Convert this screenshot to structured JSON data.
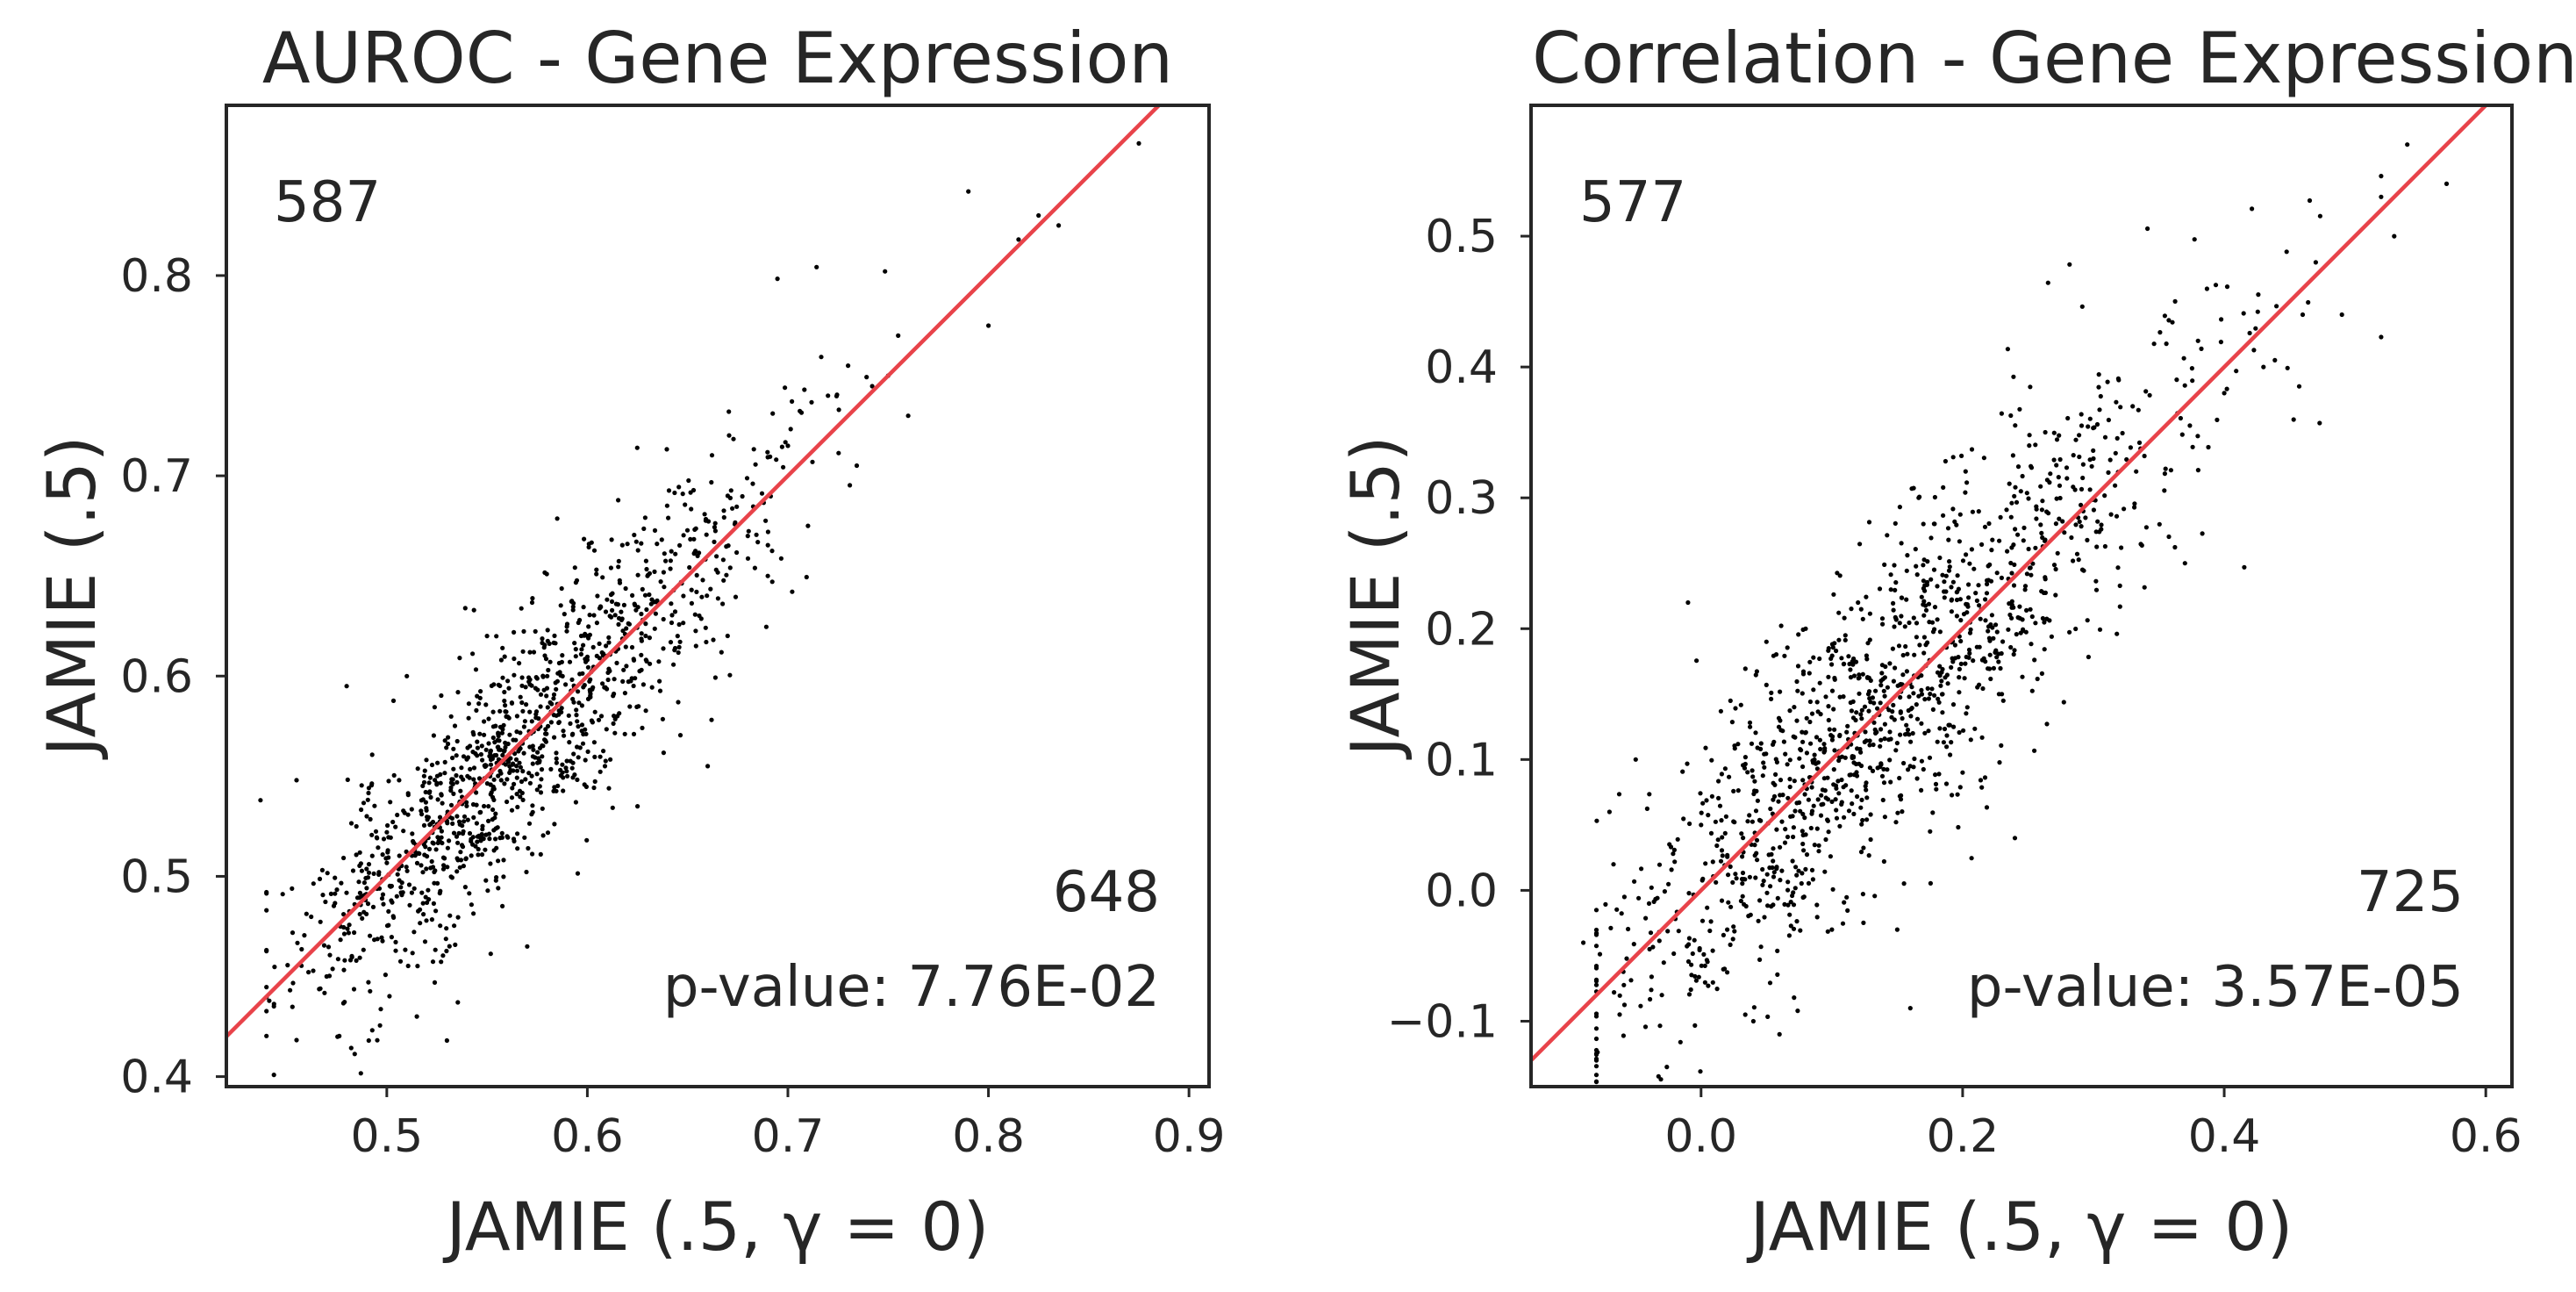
{
  "chart_data": [
    {
      "type": "scatter",
      "title": "AUROC - Gene Expression",
      "xlabel": "JAMIE (.5, γ = 0)",
      "ylabel": "JAMIE (.5)",
      "xlim": [
        0.42,
        0.91
      ],
      "ylim": [
        0.395,
        0.885
      ],
      "xticks": [
        0.5,
        0.6,
        0.7,
        0.8,
        0.9
      ],
      "yticks": [
        0.4,
        0.5,
        0.6,
        0.7,
        0.8
      ],
      "xtick_labels": [
        "0.5",
        "0.6",
        "0.7",
        "0.8",
        "0.9"
      ],
      "ytick_labels": [
        "0.4",
        "0.5",
        "0.6",
        "0.7",
        "0.8"
      ],
      "reference_line": "y = x",
      "reference_color": "#e8434a",
      "point_color": "#000000",
      "grid": false,
      "count_above_diagonal": "587",
      "count_below_diagonal": "648",
      "p_value_text": "p-value: 7.76E-02",
      "points": [
        [
          0.437,
          0.538
        ],
        [
          0.455,
          0.548
        ],
        [
          0.47,
          0.45
        ],
        [
          0.48,
          0.595
        ],
        [
          0.49,
          0.53
        ],
        [
          0.5,
          0.522
        ],
        [
          0.505,
          0.49
        ],
        [
          0.51,
          0.6
        ],
        [
          0.515,
          0.43
        ],
        [
          0.52,
          0.51
        ],
        [
          0.53,
          0.418
        ],
        [
          0.535,
          0.53
        ],
        [
          0.545,
          0.59
        ],
        [
          0.55,
          0.62
        ],
        [
          0.56,
          0.52
        ],
        [
          0.565,
          0.58
        ],
        [
          0.57,
          0.465
        ],
        [
          0.58,
          0.6
        ],
        [
          0.59,
          0.55
        ],
        [
          0.6,
          0.62
        ],
        [
          0.605,
          0.64
        ],
        [
          0.615,
          0.58
        ],
        [
          0.625,
          0.535
        ],
        [
          0.63,
          0.65
        ],
        [
          0.645,
          0.62
        ],
        [
          0.655,
          0.66
        ],
        [
          0.66,
          0.555
        ],
        [
          0.67,
          0.69
        ],
        [
          0.68,
          0.67
        ],
        [
          0.69,
          0.65
        ],
        [
          0.7,
          0.715
        ],
        [
          0.71,
          0.675
        ],
        [
          0.72,
          0.74
        ],
        [
          0.73,
          0.755
        ],
        [
          0.75,
          0.75
        ],
        [
          0.755,
          0.77
        ],
        [
          0.76,
          0.73
        ],
        [
          0.79,
          0.842
        ],
        [
          0.8,
          0.775
        ],
        [
          0.815,
          0.818
        ],
        [
          0.825,
          0.83
        ],
        [
          0.835,
          0.825
        ],
        [
          0.875,
          0.866
        ]
      ],
      "cloud": {
        "count": 1235,
        "seed": 11,
        "x_mean": 0.56,
        "x_sd": 0.065,
        "x_min": 0.44,
        "x_max": 0.77,
        "resid_sd": 0.03,
        "skew_low": 0.5
      }
    },
    {
      "type": "scatter",
      "title": "Correlation - Gene Expression",
      "xlabel": "JAMIE (.5, γ = 0)",
      "ylabel": "JAMIE (.5)",
      "xlim": [
        -0.13,
        0.62
      ],
      "ylim": [
        -0.15,
        0.6
      ],
      "xticks": [
        0.0,
        0.2,
        0.4,
        0.6
      ],
      "yticks": [
        -0.1,
        0.0,
        0.1,
        0.2,
        0.3,
        0.4,
        0.5
      ],
      "xtick_labels": [
        "0.0",
        "0.2",
        "0.4",
        "0.6"
      ],
      "ytick_labels": [
        "−0.1",
        "0.0",
        "0.1",
        "0.2",
        "0.3",
        "0.4",
        "0.5"
      ],
      "reference_line": "y = x",
      "reference_color": "#e8434a",
      "point_color": "#000000",
      "grid": false,
      "count_above_diagonal": "577",
      "count_below_diagonal": "725",
      "p_value_text": "p-value: 3.57E-05",
      "points": [
        [
          -0.09,
          -0.04
        ],
        [
          -0.07,
          0.06
        ],
        [
          -0.05,
          0.1
        ],
        [
          -0.03,
          -0.08
        ],
        [
          -0.01,
          0.22
        ],
        [
          0.0,
          0.05
        ],
        [
          0.02,
          -0.03
        ],
        [
          0.04,
          -0.1
        ],
        [
          0.05,
          0.19
        ],
        [
          0.06,
          -0.11
        ],
        [
          0.08,
          0.2
        ],
        [
          0.1,
          -0.03
        ],
        [
          0.12,
          0.22
        ],
        [
          0.15,
          -0.03
        ],
        [
          0.16,
          -0.09
        ],
        [
          0.17,
          0.28
        ],
        [
          0.2,
          0.09
        ],
        [
          0.23,
          0.15
        ],
        [
          0.24,
          0.04
        ],
        [
          0.3,
          0.33
        ],
        [
          0.33,
          0.37
        ],
        [
          0.37,
          0.25
        ],
        [
          0.38,
          0.42
        ],
        [
          0.4,
          0.38
        ],
        [
          0.43,
          0.4
        ],
        [
          0.46,
          0.44
        ],
        [
          0.47,
          0.48
        ],
        [
          0.49,
          0.44
        ],
        [
          0.52,
          0.53
        ],
        [
          0.53,
          0.5
        ],
        [
          0.54,
          0.57
        ],
        [
          0.57,
          0.54
        ]
      ],
      "cloud": {
        "count": 1302,
        "seed": 23,
        "x_mean": 0.13,
        "x_sd": 0.12,
        "x_min": -0.08,
        "x_max": 0.52,
        "resid_sd": 0.06,
        "skew_low": 0.55
      }
    }
  ]
}
